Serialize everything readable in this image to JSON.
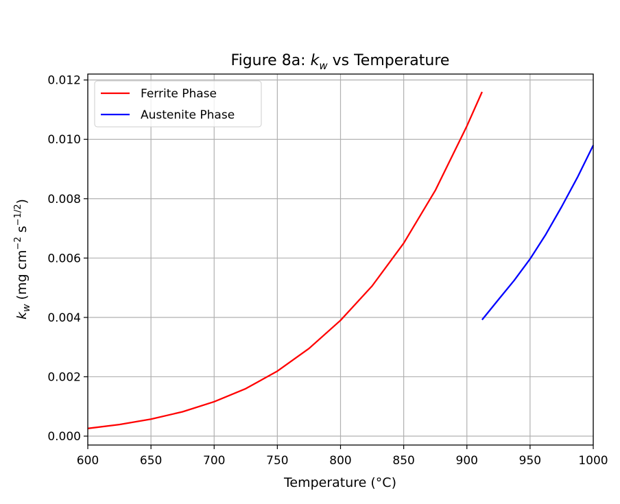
{
  "chart_data": {
    "type": "line",
    "title": {
      "prefix": "Figure 8a: ",
      "symbol": "k",
      "subscript": "w",
      "suffix": " vs Temperature"
    },
    "xlabel": "Temperature (°C)",
    "ylabel": {
      "symbol": "k",
      "subscript": "w",
      "unit_open": " (mg cm",
      "unit_exp1": "−2",
      "unit_mid": " s",
      "unit_exp2": "−1/2",
      "unit_close": ")"
    },
    "xlim": [
      600,
      1000
    ],
    "ylim": [
      -0.0003,
      0.0122
    ],
    "xticks": [
      600,
      650,
      700,
      750,
      800,
      850,
      900,
      950,
      1000
    ],
    "xtick_labels": [
      "600",
      "650",
      "700",
      "750",
      "800",
      "850",
      "900",
      "950",
      "1000"
    ],
    "yticks": [
      0.0,
      0.002,
      0.004,
      0.006,
      0.008,
      0.01,
      0.012
    ],
    "ytick_labels": [
      "0.000",
      "0.002",
      "0.004",
      "0.006",
      "0.008",
      "0.010",
      "0.012"
    ],
    "grid": true,
    "legend_position": "top-left",
    "series": [
      {
        "name": "Ferrite Phase",
        "color": "#ff0000",
        "x": [
          600,
          625,
          650,
          675,
          700,
          725,
          750,
          775,
          800,
          825,
          850,
          875,
          900,
          912
        ],
        "y": [
          0.00026,
          0.00039,
          0.00057,
          0.00082,
          0.00116,
          0.0016,
          0.00219,
          0.00295,
          0.0039,
          0.00506,
          0.0065,
          0.00828,
          0.01045,
          0.0116
        ]
      },
      {
        "name": "Austenite Phase",
        "color": "#0000ff",
        "x": [
          912,
          925,
          937.5,
          950,
          962.5,
          975,
          987.5,
          1000
        ],
        "y": [
          0.00392,
          0.0046,
          0.00525,
          0.00597,
          0.0068,
          0.00773,
          0.00872,
          0.0098
        ]
      }
    ]
  }
}
